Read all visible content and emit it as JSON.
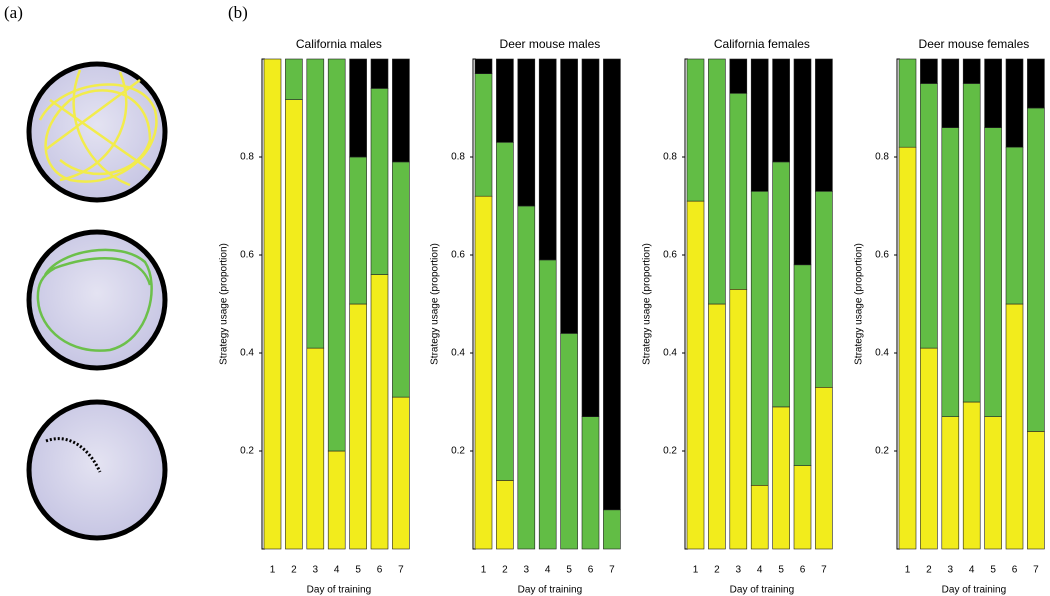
{
  "panel_labels": [
    "(a)",
    "(b)"
  ],
  "chart_data": [
    {
      "type": "bar",
      "stacked": true,
      "title": "California males",
      "xlabel": "Day of training",
      "ylabel": "Strategy usage (proportion)",
      "categories": [
        "1",
        "2",
        "3",
        "4",
        "5",
        "6",
        "7"
      ],
      "ylim": [
        0,
        1
      ],
      "yticks": [
        0.2,
        0.4,
        0.6,
        0.8
      ],
      "series": [
        {
          "color": "#f2ec1c",
          "values": [
            1.0,
            0.917,
            0.41,
            0.2,
            0.5,
            0.56,
            0.31
          ]
        },
        {
          "color": "#62bd45",
          "values": [
            0,
            0.083,
            0.59,
            0.8,
            0.3,
            0.38,
            0.48
          ]
        },
        {
          "color": "#000000",
          "values": [
            0,
            0,
            0,
            0,
            0.2,
            0.06,
            0.21
          ]
        }
      ]
    },
    {
      "type": "bar",
      "stacked": true,
      "title": "Deer mouse males",
      "xlabel": "Day of training",
      "ylabel": "Strategy usage (proportion)",
      "categories": [
        "1",
        "2",
        "3",
        "4",
        "5",
        "6",
        "7"
      ],
      "ylim": [
        0,
        1
      ],
      "yticks": [
        0.2,
        0.4,
        0.6,
        0.8
      ],
      "series": [
        {
          "color": "#f2ec1c",
          "values": [
            0.72,
            0.14,
            0,
            0,
            0,
            0,
            0
          ]
        },
        {
          "color": "#62bd45",
          "values": [
            0.25,
            0.69,
            0.7,
            0.59,
            0.44,
            0.27,
            0.08
          ]
        },
        {
          "color": "#000000",
          "values": [
            0.03,
            0.17,
            0.3,
            0.41,
            0.56,
            0.73,
            0.92
          ]
        }
      ]
    },
    {
      "type": "bar",
      "stacked": true,
      "title": "California females",
      "xlabel": "Day of training",
      "ylabel": "Strategy usage (proportion)",
      "categories": [
        "1",
        "2",
        "3",
        "4",
        "5",
        "6",
        "7"
      ],
      "ylim": [
        0,
        1
      ],
      "yticks": [
        0.2,
        0.4,
        0.6,
        0.8
      ],
      "series": [
        {
          "color": "#f2ec1c",
          "values": [
            0.71,
            0.5,
            0.53,
            0.13,
            0.29,
            0.17,
            0.33
          ]
        },
        {
          "color": "#62bd45",
          "values": [
            0.29,
            0.5,
            0.4,
            0.6,
            0.5,
            0.41,
            0.4
          ]
        },
        {
          "color": "#000000",
          "values": [
            0,
            0,
            0.07,
            0.27,
            0.21,
            0.42,
            0.27
          ]
        }
      ]
    },
    {
      "type": "bar",
      "stacked": true,
      "title": "Deer mouse females",
      "xlabel": "Day of training",
      "ylabel": "Strategy usage (proportion)",
      "categories": [
        "1",
        "2",
        "3",
        "4",
        "5",
        "6",
        "7"
      ],
      "ylim": [
        0,
        1
      ],
      "yticks": [
        0.2,
        0.4,
        0.6,
        0.8
      ],
      "series": [
        {
          "color": "#f2ec1c",
          "values": [
            0.82,
            0.41,
            0.27,
            0.3,
            0.27,
            0.5,
            0.24
          ]
        },
        {
          "color": "#62bd45",
          "values": [
            0.18,
            0.54,
            0.59,
            0.65,
            0.59,
            0.32,
            0.66
          ]
        },
        {
          "color": "#000000",
          "values": [
            0,
            0.05,
            0.14,
            0.05,
            0.14,
            0.18,
            0.1
          ]
        }
      ]
    }
  ]
}
